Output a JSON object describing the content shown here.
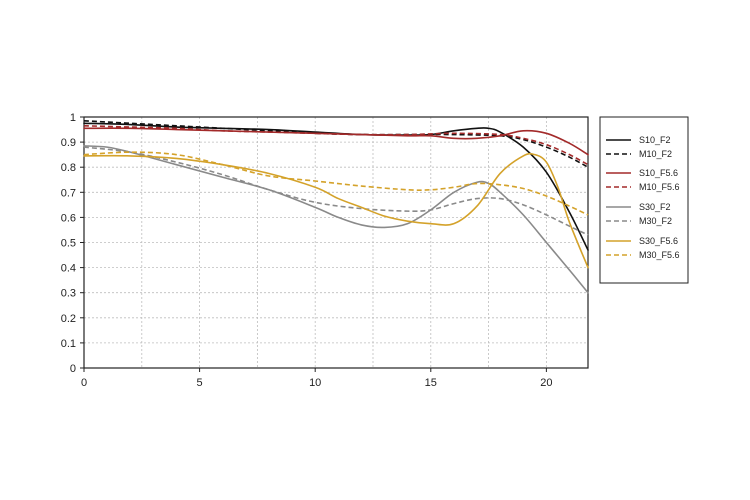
{
  "chart_data": {
    "type": "line",
    "title": "",
    "xlabel": "",
    "ylabel": "",
    "xlim": [
      0,
      21.8
    ],
    "ylim": [
      0,
      1
    ],
    "x_ticks": [
      0,
      5,
      10,
      15,
      20
    ],
    "x_tick_labels": [
      "0",
      "5",
      "10",
      "15",
      "20"
    ],
    "y_ticks": [
      0,
      0.1,
      0.2,
      0.3,
      0.4,
      0.5,
      0.6,
      0.7,
      0.8,
      0.9,
      1
    ],
    "y_tick_labels": [
      "0",
      "0.1",
      "0.2",
      "0.3",
      "0.4",
      "0.5",
      "0.6",
      "0.7",
      "0.8",
      "0.9",
      "1"
    ],
    "grid": true,
    "legend_position": "right",
    "series": [
      {
        "name": "S10_F2",
        "color": "#111111",
        "dash": false,
        "x": [
          0,
          2,
          4,
          6,
          8,
          10,
          12,
          14,
          15,
          16,
          17,
          17.5,
          18,
          19,
          20,
          21,
          21.8
        ],
        "y": [
          0.975,
          0.97,
          0.96,
          0.955,
          0.95,
          0.94,
          0.93,
          0.928,
          0.93,
          0.945,
          0.955,
          0.955,
          0.94,
          0.88,
          0.78,
          0.62,
          0.47
        ]
      },
      {
        "name": "M10_F2",
        "color": "#111111",
        "dash": true,
        "x": [
          0,
          2,
          4,
          6,
          8,
          10,
          12,
          14,
          16,
          18,
          19,
          20,
          21,
          21.8
        ],
        "y": [
          0.985,
          0.975,
          0.965,
          0.955,
          0.945,
          0.935,
          0.93,
          0.93,
          0.93,
          0.925,
          0.91,
          0.88,
          0.84,
          0.8
        ]
      },
      {
        "name": "S10_F5.6",
        "color": "#a32a2a",
        "dash": false,
        "x": [
          0,
          2,
          4,
          6,
          8,
          10,
          12,
          14,
          15,
          16,
          17,
          18,
          19,
          20,
          21,
          21.8
        ],
        "y": [
          0.955,
          0.955,
          0.95,
          0.945,
          0.94,
          0.935,
          0.93,
          0.925,
          0.925,
          0.915,
          0.915,
          0.925,
          0.945,
          0.935,
          0.895,
          0.85
        ]
      },
      {
        "name": "M10_F5.6",
        "color": "#a32a2a",
        "dash": true,
        "x": [
          0,
          2,
          4,
          6,
          8,
          10,
          12,
          14,
          16,
          18,
          19,
          20,
          21,
          21.8
        ],
        "y": [
          0.965,
          0.96,
          0.955,
          0.945,
          0.94,
          0.935,
          0.93,
          0.93,
          0.935,
          0.93,
          0.915,
          0.89,
          0.85,
          0.81
        ]
      },
      {
        "name": "S30_F2",
        "color": "#8a8a8a",
        "dash": false,
        "x": [
          0,
          1,
          2,
          4,
          6,
          8,
          10,
          11,
          12,
          13,
          14,
          15,
          16,
          17,
          17.5,
          18,
          19,
          20,
          21,
          21.8
        ],
        "y": [
          0.885,
          0.88,
          0.86,
          0.81,
          0.76,
          0.71,
          0.64,
          0.6,
          0.57,
          0.56,
          0.575,
          0.63,
          0.7,
          0.74,
          0.735,
          0.7,
          0.61,
          0.5,
          0.39,
          0.3
        ]
      },
      {
        "name": "M30_F2",
        "color": "#8a8a8a",
        "dash": true,
        "x": [
          0,
          2,
          4,
          6,
          8,
          10,
          12,
          14,
          15,
          16,
          17,
          18,
          19,
          20,
          21,
          21.8
        ],
        "y": [
          0.88,
          0.86,
          0.82,
          0.77,
          0.71,
          0.66,
          0.635,
          0.625,
          0.63,
          0.655,
          0.675,
          0.675,
          0.65,
          0.61,
          0.565,
          0.53
        ]
      },
      {
        "name": "S30_F5.6",
        "color": "#d4a22a",
        "dash": false,
        "x": [
          0,
          2,
          4,
          6,
          8,
          10,
          11,
          12,
          13,
          14,
          15,
          16,
          17,
          18,
          19,
          19.5,
          20,
          20.5,
          21,
          21.8
        ],
        "y": [
          0.845,
          0.845,
          0.835,
          0.81,
          0.775,
          0.72,
          0.675,
          0.64,
          0.605,
          0.585,
          0.575,
          0.575,
          0.645,
          0.775,
          0.845,
          0.85,
          0.82,
          0.72,
          0.58,
          0.4
        ]
      },
      {
        "name": "M30_F5.6",
        "color": "#d4a22a",
        "dash": true,
        "x": [
          0,
          2,
          4,
          6,
          8,
          10,
          12,
          14,
          15,
          16,
          17,
          18,
          19,
          20,
          21,
          21.8
        ],
        "y": [
          0.85,
          0.86,
          0.85,
          0.81,
          0.765,
          0.745,
          0.725,
          0.71,
          0.71,
          0.72,
          0.735,
          0.73,
          0.715,
          0.685,
          0.645,
          0.61
        ]
      }
    ]
  }
}
